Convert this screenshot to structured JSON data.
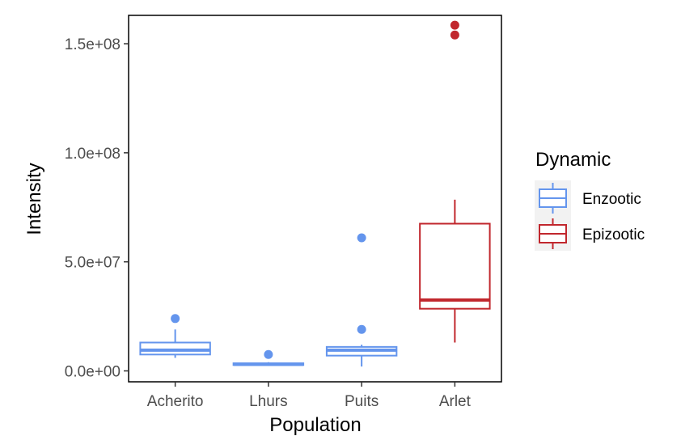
{
  "chart_data": {
    "type": "boxplot",
    "xlabel": "Population",
    "ylabel": "Intensity",
    "categories": [
      "Acherito",
      "Lhurs",
      "Puits",
      "Arlet"
    ],
    "ylim": [
      -5000000,
      163000000
    ],
    "yticks": [
      0,
      50000000,
      100000000,
      150000000
    ],
    "ytick_labels": [
      "0.0e+00",
      "5.0e+07",
      "1.0e+08",
      "1.5e+08"
    ],
    "legend": {
      "title": "Dynamic",
      "position": "right",
      "entries": [
        {
          "name": "Enzootic",
          "color": "#6495ED"
        },
        {
          "name": "Epizootic",
          "color": "#C1272D"
        }
      ]
    },
    "grid": false,
    "boxes": [
      {
        "category": "Acherito",
        "group": "Enzootic",
        "min": 6000000,
        "q1": 7500000,
        "median": 9500000,
        "q3": 13000000,
        "max": 19000000,
        "outliers": [
          24000000
        ]
      },
      {
        "category": "Lhurs",
        "group": "Enzootic",
        "min": 2500000,
        "q1": 2700000,
        "median": 3000000,
        "q3": 3500000,
        "max": 4000000,
        "outliers": [
          7500000
        ]
      },
      {
        "category": "Puits",
        "group": "Enzootic",
        "min": 2000000,
        "q1": 7000000,
        "median": 9500000,
        "q3": 11000000,
        "max": 12000000,
        "outliers": [
          19000000,
          61000000
        ]
      },
      {
        "category": "Arlet",
        "group": "Epizootic",
        "min": 13000000,
        "q1": 28500000,
        "median": 32500000,
        "q3": 67500000,
        "max": 78500000,
        "outliers": [
          154000000,
          158500000
        ]
      }
    ]
  }
}
